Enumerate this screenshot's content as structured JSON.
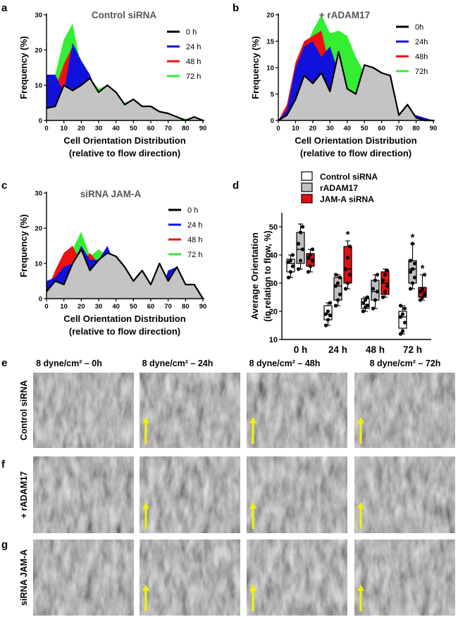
{
  "panel_letters": [
    "a",
    "b",
    "c",
    "d",
    "e",
    "f",
    "g"
  ],
  "micrograph_section": {
    "column_headers": [
      "8 dyne/cm² – 0h",
      "8 dyne/cm² – 24h",
      "8 dyne/cm² – 48h",
      "8 dyne/cm² – 72h"
    ],
    "row_labels": [
      "Control siRNA",
      "+ rADAM17",
      "siRNA JAM-A"
    ],
    "flow_arrow_color": "#f2f200",
    "arrows_shown_in_columns": [
      false,
      true,
      true,
      true
    ]
  },
  "chart_data": [
    {
      "panel": "a",
      "type": "area",
      "title": "Control siRNA",
      "xlabel": "Cell Orientation Distribution",
      "xlabel2": "(relative to flow direction)",
      "ylabel": "Frequency (%)",
      "xlim": [
        0,
        90
      ],
      "ylim": [
        0,
        30
      ],
      "xticks": [
        0,
        10,
        20,
        30,
        40,
        50,
        60,
        70,
        80,
        90
      ],
      "yticks": [
        0,
        10,
        20,
        30
      ],
      "legend_position": "top-right",
      "series": [
        {
          "name": "72 h",
          "color": "#33ee33",
          "x": [
            0,
            5,
            10,
            15,
            20,
            25,
            30,
            35,
            40,
            45,
            50,
            55,
            60,
            65,
            70,
            75,
            80,
            85,
            90
          ],
          "values": [
            3,
            13,
            23,
            27.5,
            15,
            12,
            9,
            10,
            8,
            5,
            6,
            4,
            3,
            2,
            1.5,
            1,
            0.5,
            0.5,
            0
          ]
        },
        {
          "name": "48 h",
          "color": "#ee1111",
          "x": [
            0,
            5,
            10,
            15,
            20,
            25,
            30,
            35,
            40,
            45,
            50,
            55,
            60,
            65,
            70,
            75,
            80,
            85,
            90
          ],
          "values": [
            4,
            9,
            16,
            21,
            16,
            12,
            8,
            9,
            7,
            4,
            3,
            2,
            1,
            0.5,
            0.5,
            0,
            0,
            0,
            0
          ]
        },
        {
          "name": "24 h",
          "color": "#1111dd",
          "x": [
            0,
            5,
            10,
            15,
            20,
            25,
            30,
            35,
            40,
            45,
            50,
            55,
            60,
            65,
            70,
            75,
            80,
            85,
            90
          ],
          "values": [
            13,
            13,
            8,
            22,
            17,
            13,
            7,
            5,
            3,
            2,
            1,
            0.5,
            0.5,
            0,
            0,
            0,
            0,
            1,
            0
          ]
        },
        {
          "name": "0 h",
          "color": "#000000",
          "fill": "#c4c4c4",
          "x": [
            0,
            5,
            10,
            15,
            20,
            25,
            30,
            35,
            40,
            45,
            50,
            55,
            60,
            65,
            70,
            75,
            80,
            85,
            90
          ],
          "values": [
            3.5,
            4,
            10,
            8.5,
            10,
            12,
            8,
            10,
            8,
            4.5,
            6,
            4,
            4,
            2.5,
            2,
            1,
            0,
            1,
            0
          ]
        }
      ]
    },
    {
      "panel": "b",
      "type": "area",
      "title": "+ rADAM17",
      "xlabel": "Cell Orientation Distribution",
      "xlabel2": "(relative to flow direction)",
      "ylabel": "Frequency (%)",
      "xlim": [
        0,
        90
      ],
      "ylim": [
        0,
        20
      ],
      "xticks": [
        0,
        10,
        20,
        30,
        40,
        50,
        60,
        70,
        80,
        90
      ],
      "yticks": [
        0,
        5,
        10,
        15,
        20
      ],
      "legend_position": "top-right",
      "series": [
        {
          "name": "72h",
          "color": "#33ee33",
          "x": [
            0,
            5,
            10,
            15,
            20,
            25,
            30,
            35,
            40,
            45,
            50,
            55,
            60,
            65,
            70,
            75,
            80,
            85,
            90
          ],
          "values": [
            0,
            2,
            8,
            13,
            17,
            20,
            16.5,
            17,
            16,
            12,
            9,
            8,
            7,
            5,
            0,
            1,
            0,
            0,
            0
          ]
        },
        {
          "name": "48h",
          "color": "#ee1111",
          "x": [
            0,
            5,
            10,
            15,
            20,
            25,
            30,
            35,
            40,
            45,
            50,
            55,
            60,
            65,
            70,
            75,
            80,
            85,
            90
          ],
          "values": [
            0,
            3,
            11,
            15,
            16,
            17,
            10,
            9,
            5,
            3,
            2,
            1,
            1,
            0.5,
            0,
            0,
            0,
            0,
            0
          ]
        },
        {
          "name": "24h",
          "color": "#1111dd",
          "x": [
            0,
            5,
            10,
            15,
            20,
            25,
            30,
            35,
            40,
            45,
            50,
            55,
            60,
            65,
            70,
            75,
            80,
            85,
            90
          ],
          "values": [
            0,
            2,
            10,
            14,
            15,
            12,
            14,
            9,
            5,
            3,
            2,
            1,
            1,
            1,
            1,
            1,
            1,
            0.5,
            0
          ]
        },
        {
          "name": "0h",
          "color": "#000000",
          "fill": "#c4c4c4",
          "x": [
            0,
            5,
            10,
            15,
            20,
            25,
            30,
            35,
            40,
            45,
            50,
            55,
            60,
            65,
            70,
            75,
            80,
            85,
            90
          ],
          "values": [
            0,
            1,
            4,
            8.5,
            7,
            9,
            5.5,
            13,
            6,
            5,
            10.5,
            10,
            9,
            8.5,
            1,
            3,
            0.5,
            0,
            0
          ]
        }
      ]
    },
    {
      "panel": "c",
      "type": "area",
      "title": "siRNA JAM-A",
      "xlabel": "Cell Orientation Distribution",
      "xlabel2": "(relative to flow direction)",
      "ylabel": "Frequency (%)",
      "xlim": [
        0,
        90
      ],
      "ylim": [
        0,
        30
      ],
      "xticks": [
        0,
        10,
        20,
        30,
        40,
        50,
        60,
        70,
        80,
        90
      ],
      "yticks": [
        0,
        10,
        20,
        30
      ],
      "legend_position": "top-right",
      "series": [
        {
          "name": "72 h",
          "color": "#33ee33",
          "x": [
            0,
            5,
            10,
            15,
            20,
            25,
            30,
            35,
            40,
            45,
            50,
            55,
            60,
            65,
            70,
            75,
            80,
            85,
            90
          ],
          "values": [
            3,
            7,
            13,
            14,
            19,
            12,
            14,
            12,
            10,
            5,
            2,
            1,
            0.5,
            0,
            0,
            0,
            1,
            0,
            0
          ]
        },
        {
          "name": "48 h",
          "color": "#ee1111",
          "x": [
            0,
            5,
            10,
            15,
            20,
            25,
            30,
            35,
            40,
            45,
            50,
            55,
            60,
            65,
            70,
            75,
            80,
            85,
            90
          ],
          "values": [
            2,
            8,
            13,
            15,
            10,
            13,
            10,
            8,
            6,
            3,
            2,
            1,
            0.5,
            0,
            0,
            0,
            0,
            0,
            0
          ]
        },
        {
          "name": "24 h",
          "color": "#1111dd",
          "x": [
            0,
            5,
            10,
            15,
            20,
            25,
            30,
            35,
            40,
            45,
            50,
            55,
            60,
            65,
            70,
            75,
            80,
            85,
            90
          ],
          "values": [
            5,
            6,
            9,
            10,
            15,
            11,
            11,
            15,
            9,
            6,
            3,
            2,
            1,
            1,
            8,
            9,
            2,
            0,
            0
          ]
        },
        {
          "name": "0 h",
          "color": "#000000",
          "fill": "#c4c4c4",
          "x": [
            0,
            5,
            10,
            15,
            20,
            25,
            30,
            35,
            40,
            45,
            50,
            55,
            60,
            65,
            70,
            75,
            80,
            85,
            90
          ],
          "values": [
            2,
            5,
            4,
            10,
            14,
            8,
            11,
            13,
            12,
            9,
            5,
            8,
            4,
            10,
            5,
            9,
            4,
            4,
            0
          ]
        }
      ]
    },
    {
      "panel": "d",
      "type": "box",
      "title": "",
      "xlabel": "",
      "ylabel": "Average Orientation",
      "ylabel2": "(in relation to flow, %)",
      "ylim": [
        10,
        55
      ],
      "yticks": [
        10,
        20,
        30,
        40,
        50
      ],
      "categories": [
        "0 h",
        "24 h",
        "48 h",
        "72 h"
      ],
      "legend_position": "top",
      "series": [
        {
          "name": "Control siRNA",
          "fill": "#ffffff",
          "boxes": [
            {
              "min": 32,
              "q1": 34,
              "median": 37,
              "q3": 38.5,
              "max": 40,
              "points": [
                32,
                34,
                36,
                37.5,
                38,
                40
              ]
            },
            {
              "min": 15,
              "q1": 17,
              "median": 19,
              "q3": 22,
              "max": 23,
              "points": [
                15,
                17,
                18.5,
                19,
                20,
                23
              ]
            },
            {
              "min": 20,
              "q1": 21,
              "median": 22.5,
              "q3": 24.5,
              "max": 25,
              "points": [
                20,
                21.5,
                22,
                23,
                24,
                25
              ]
            },
            {
              "min": 12,
              "q1": 14,
              "median": 18,
              "q3": 20,
              "max": 22,
              "points": [
                12,
                13,
                16,
                18,
                19,
                21,
                22
              ]
            }
          ]
        },
        {
          "name": "rADAM17",
          "fill": "#c0c0c0",
          "boxes": [
            {
              "min": 35,
              "q1": 37,
              "median": 42,
              "q3": 48,
              "max": 51,
              "points": [
                35,
                38,
                42,
                44,
                48,
                50
              ]
            },
            {
              "min": 22,
              "q1": 24,
              "median": 29,
              "q3": 32,
              "max": 33,
              "points": [
                22,
                24,
                26,
                29,
                30,
                32,
                33
              ]
            },
            {
              "min": 21,
              "q1": 24,
              "median": 27,
              "q3": 31,
              "max": 33,
              "points": [
                21,
                24,
                27,
                28,
                31,
                33
              ]
            },
            {
              "min": 28,
              "q1": 30,
              "median": 35,
              "q3": 38,
              "max": 44,
              "points": [
                28,
                30,
                32,
                34,
                35,
                37,
                38,
                44
              ]
            }
          ]
        },
        {
          "name": "JAM-A siRNA",
          "fill": "#e01010",
          "boxes": [
            {
              "min": 34,
              "q1": 36,
              "median": 38.5,
              "q3": 40.5,
              "max": 42,
              "points": [
                34,
                36,
                38,
                39,
                40,
                42
              ]
            },
            {
              "min": 28,
              "q1": 30,
              "median": 35,
              "q3": 43,
              "max": 45,
              "points": [
                28,
                30,
                33,
                35,
                39,
                43
              ]
            },
            {
              "min": 25,
              "q1": 26,
              "median": 30,
              "q3": 34,
              "max": 35,
              "points": [
                25,
                27,
                29,
                31,
                33,
                34.5
              ]
            },
            {
              "min": 24,
              "q1": 25,
              "median": 27,
              "q3": 28.5,
              "max": 33,
              "points": [
                24,
                25,
                26,
                27,
                28,
                33
              ]
            }
          ]
        }
      ],
      "annotations": [
        {
          "category": "24 h",
          "series": "JAM-A siRNA",
          "text": "*"
        },
        {
          "category": "72 h",
          "series": "rADAM17",
          "text": "*"
        },
        {
          "category": "72 h",
          "series": "JAM-A siRNA",
          "text": "*"
        }
      ]
    }
  ]
}
